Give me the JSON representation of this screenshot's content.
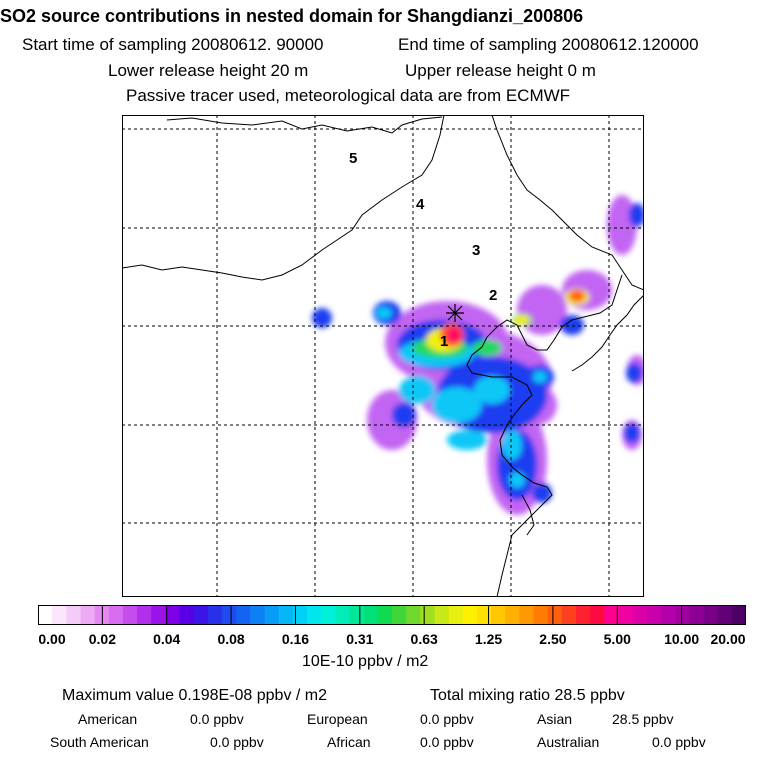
{
  "header": {
    "title": "SO2 source contributions in nested domain for Shangdianzi_200806",
    "start_time": "Start time of sampling 20080612. 90000",
    "end_time": "End time of sampling 20080612.120000",
    "lower_release": "Lower release height   20 m",
    "upper_release": "Upper release height    0 m",
    "tracer_note": "Passive tracer used, meteorological data are from ECMWF"
  },
  "map": {
    "region_labels": [
      "5",
      "4",
      "3",
      "2",
      "1"
    ],
    "station_marker": "station-star",
    "grid": "dotted"
  },
  "colorbar": {
    "tick_labels": [
      "0.00",
      "0.02",
      "0.04",
      "0.08",
      "0.16",
      "0.31",
      "0.63",
      "1.25",
      "2.50",
      "5.00",
      "10.00",
      "20.00"
    ],
    "colors": [
      "#ffffff",
      "#fbe6fb",
      "#f5ccf7",
      "#eeaaf5",
      "#e488f2",
      "#d86cf0",
      "#c74cee",
      "#b22fec",
      "#9a14ea",
      "#7e00e8",
      "#5a00e6",
      "#3c14e8",
      "#2a30ea",
      "#1e4cee",
      "#1464f2",
      "#0c80f4",
      "#089cf6",
      "#04b8f8",
      "#00d0f6",
      "#00e6ee",
      "#00f0d8",
      "#00ecb8",
      "#00e898",
      "#00e278",
      "#10da50",
      "#40d63a",
      "#70d82c",
      "#a0de20",
      "#c8e818",
      "#e8f010",
      "#fff000",
      "#ffe000",
      "#ffc800",
      "#ffb000",
      "#ff9800",
      "#ff7c00",
      "#ff6010",
      "#ff4020",
      "#ff2030",
      "#ff0a40",
      "#ff0090",
      "#f000a0",
      "#dc00a8",
      "#c800ac",
      "#b400aa",
      "#a000a0",
      "#8c0096",
      "#780088",
      "#620078",
      "#4c0066"
    ],
    "unit": "10E-10 ppbv / m2"
  },
  "summary": {
    "max_value": "Maximum value  0.198E-08 ppbv / m2",
    "total_mixing": "Total mixing ratio       28.5 ppbv",
    "american_label": "American",
    "american_value": "0.0 ppbv",
    "european_label": "European",
    "european_value": "0.0 ppbv",
    "asian_label": "Asian",
    "asian_value": "28.5 ppbv",
    "south_american_label": "South American",
    "south_american_value": "0.0 ppbv",
    "african_label": "African",
    "african_value": "0.0 ppbv",
    "australian_label": "Australian",
    "australian_value": "0.0 ppbv"
  }
}
